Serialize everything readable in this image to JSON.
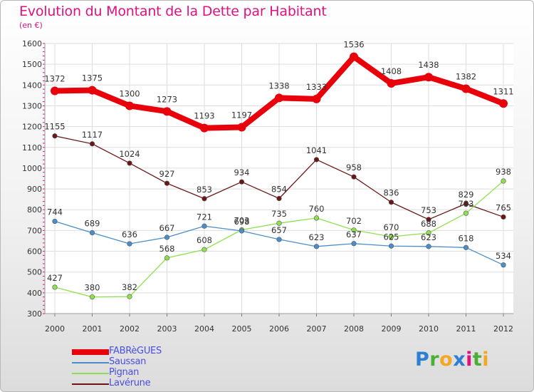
{
  "chart_data": {
    "type": "line",
    "title": "Evolution du Montant de la Dette par Habitant",
    "unit_label": "(en €)",
    "x": [
      "2000",
      "2001",
      "2002",
      "2003",
      "2004",
      "2005",
      "2006",
      "2007",
      "2008",
      "2009",
      "2010",
      "2011",
      "2012"
    ],
    "yticks": [
      300,
      400,
      500,
      600,
      700,
      800,
      900,
      1000,
      1100,
      1200,
      1300,
      1400,
      1500,
      1600
    ],
    "ylim": [
      300,
      1600
    ],
    "grid": true,
    "legend_position": "bottom-left",
    "series": [
      {
        "name": "FABRèGUES",
        "color": "#e8000b",
        "values": [
          1372,
          1375,
          1300,
          1273,
          1193,
          1197,
          1338,
          1333,
          1536,
          1408,
          1438,
          1382,
          1311
        ]
      },
      {
        "name": "Saussan",
        "color": "#4a8ec9",
        "values": [
          744,
          689,
          636,
          667,
          721,
          698,
          657,
          623,
          637,
          625,
          623,
          618,
          534
        ]
      },
      {
        "name": "Pignan",
        "color": "#8ee050",
        "values": [
          427,
          380,
          382,
          568,
          608,
          703,
          735,
          760,
          702,
          670,
          688,
          783,
          938
        ]
      },
      {
        "name": "Lavérune",
        "color": "#6b1616",
        "values": [
          1155,
          1117,
          1024,
          927,
          853,
          934,
          854,
          1041,
          958,
          836,
          753,
          829,
          765
        ]
      }
    ]
  },
  "logo": {
    "letters": [
      "P",
      "r",
      "o",
      "x",
      "i",
      "t",
      "i"
    ],
    "colors": [
      "#2c7fd1",
      "#4caf33",
      "#f5a623",
      "#2c7fd1",
      "#e0117f",
      "#4caf33",
      "#f5a623"
    ]
  }
}
